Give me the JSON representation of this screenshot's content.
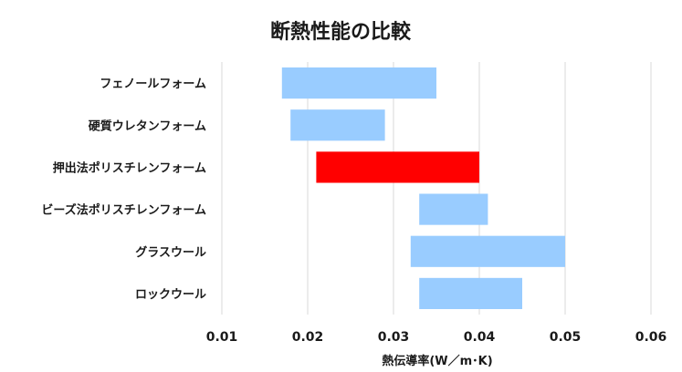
{
  "chart_data": {
    "type": "bar",
    "orientation": "horizontal-floating-range",
    "title": "断熱性能の比較",
    "xlabel": "熱伝導率(W／m･K)",
    "ylabel": "",
    "xlim": [
      0.01,
      0.06
    ],
    "x_ticks": [
      "0.01",
      "0.02",
      "0.03",
      "0.04",
      "0.05",
      "0.06"
    ],
    "grid": "vertical",
    "categories": [
      "フェノールフォーム",
      "硬質ウレタンフォーム",
      "押出法ポリスチレンフォーム",
      "ビーズ法ポリスチレンフォーム",
      "グラスウール",
      "ロックウール"
    ],
    "ranges": [
      [
        0.017,
        0.035
      ],
      [
        0.018,
        0.029
      ],
      [
        0.021,
        0.04
      ],
      [
        0.033,
        0.041
      ],
      [
        0.032,
        0.05
      ],
      [
        0.033,
        0.045
      ]
    ],
    "highlight_index": 2,
    "colors": {
      "bar": "#99ccff",
      "highlight": "#ff0000",
      "grid": "#d9d9d9"
    }
  }
}
